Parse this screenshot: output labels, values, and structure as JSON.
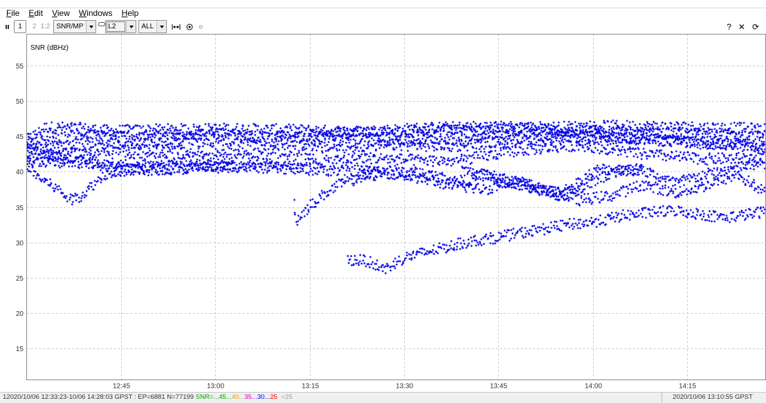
{
  "menu": {
    "items": [
      {
        "u": "F",
        "rest": "ile"
      },
      {
        "u": "E",
        "rest": "dit"
      },
      {
        "u": "V",
        "rest": "iew"
      },
      {
        "u": "W",
        "rest": "indows"
      },
      {
        "u": "H",
        "rest": "elp"
      }
    ]
  },
  "toolbar": {
    "frame1": "1",
    "frame2": "2",
    "frame12": "1:2",
    "plot_type": "SNR/MP",
    "freq": "L2",
    "sat": "ALL",
    "help": "?",
    "close": "✕",
    "reload": "⟳"
  },
  "chart_data": {
    "type": "scatter",
    "ylabel": "SNR (dBHz)",
    "xlabel": "",
    "x_ticks": [
      "12:45",
      "13:00",
      "13:15",
      "13:30",
      "13:45",
      "14:00",
      "14:15"
    ],
    "x_tick_minutes": [
      12,
      27,
      42,
      57,
      72,
      87,
      102
    ],
    "xlim_minutes": [
      -3.0,
      114.5
    ],
    "x_origin_label": "12:33",
    "y_ticks": [
      15,
      20,
      25,
      30,
      35,
      40,
      45,
      50,
      55
    ],
    "ylim": [
      10.5,
      59.5
    ],
    "grid": true,
    "marker_color": "#0000e6",
    "series": [
      {
        "x": [
          -3,
          0,
          5,
          10,
          20,
          30,
          40,
          50,
          60,
          70,
          80,
          90,
          100,
          110,
          114.5
        ],
        "y": [
          44.5,
          46.3,
          46.2,
          45.8,
          46.0,
          46.1,
          45.9,
          45.7,
          46.2,
          46.4,
          46.3,
          46.5,
          46.4,
          46.2,
          46.0
        ]
      },
      {
        "x": [
          -3,
          5,
          15,
          25,
          35,
          45,
          55,
          65,
          75,
          85,
          95,
          105,
          114.5
        ],
        "y": [
          44.0,
          45.2,
          45.0,
          45.4,
          44.8,
          45.3,
          45.6,
          45.9,
          46.1,
          45.8,
          45.5,
          45.2,
          45.0
        ]
      },
      {
        "x": [
          -3,
          5,
          15,
          25,
          35,
          45,
          55,
          65,
          75,
          85,
          95,
          105,
          114.5
        ],
        "y": [
          43.0,
          43.8,
          44.0,
          44.6,
          44.2,
          44.9,
          44.5,
          44.7,
          45.2,
          45.0,
          44.8,
          44.0,
          43.5
        ]
      },
      {
        "x": [
          -3,
          5,
          15,
          25,
          35,
          45,
          55,
          65,
          75,
          85,
          95,
          105,
          114.5
        ],
        "y": [
          42.2,
          42.6,
          43.2,
          43.0,
          42.5,
          43.4,
          43.8,
          43.6,
          44.5,
          45.0,
          44.6,
          44.0,
          43.8
        ]
      },
      {
        "x": [
          -3,
          10,
          20,
          30,
          40,
          50,
          60,
          65,
          75,
          85,
          95,
          105,
          114.5
        ],
        "y": [
          41.5,
          41.2,
          41.8,
          41.2,
          41.0,
          42.0,
          41.6,
          41.5,
          43.0,
          43.8,
          42.5,
          41.8,
          42.0
        ]
      },
      {
        "x": [
          -3,
          5,
          15,
          25,
          35,
          45,
          55,
          60,
          66,
          70,
          76,
          82,
          88,
          95,
          100,
          105,
          110,
          114.5
        ],
        "y": [
          43.6,
          41.5,
          40.2,
          40.8,
          40.6,
          40.2,
          40.1,
          39.8,
          38.5,
          39.6,
          37.9,
          37.0,
          40.4,
          40.2,
          38.4,
          39.6,
          40.6,
          41.2
        ]
      },
      {
        "x": [
          -3,
          -1,
          2,
          4,
          6,
          8,
          10,
          15,
          25,
          30
        ],
        "y": [
          41.0,
          39.2,
          37.5,
          36.0,
          36.8,
          38.5,
          40.0,
          40.3,
          40.5,
          40.6
        ]
      },
      {
        "x": [
          50,
          55,
          60,
          65,
          70,
          75,
          80,
          85,
          90,
          95,
          100,
          105,
          110,
          114.5
        ],
        "y": [
          40.0,
          39.8,
          39.0,
          38.0,
          37.5,
          38.8,
          37.2,
          36.0,
          36.6,
          38.2,
          37.0,
          38.0,
          39.6,
          37.0
        ]
      },
      {
        "x": [
          66,
          72,
          76,
          82,
          86,
          90,
          95
        ],
        "y": [
          40.2,
          39.2,
          38.1,
          36.6,
          38.1,
          39.9,
          40.5
        ]
      },
      {
        "x": [
          39.5,
          40.0,
          41.0,
          42.5,
          44.5,
          47.0,
          50.0,
          53.0
        ],
        "y": [
          35.5,
          33.0,
          34.3,
          35.5,
          37.0,
          38.3,
          39.1,
          39.6
        ]
      },
      {
        "x": [
          48,
          51,
          54,
          57,
          60,
          64,
          68,
          72,
          76,
          80,
          84,
          88,
          92,
          96,
          100,
          104,
          108,
          112,
          114.5
        ],
        "y": [
          27.5,
          27.4,
          26.2,
          27.8,
          28.5,
          29.4,
          30.2,
          30.7,
          31.4,
          32.0,
          32.6,
          33.0,
          33.8,
          34.2,
          34.5,
          34.0,
          33.5,
          34.0,
          34.4
        ]
      }
    ]
  },
  "status": {
    "frame_num": "1",
    "summary": "2020/10/06 12:33:23-10/06 14:28:03 GPST : EP=6881 N=77199",
    "snr_prefix": "SNR=...",
    "snr_levels": [
      {
        "label": "45",
        "color": "#00a000"
      },
      {
        "label": "40",
        "color": "#e0a000"
      },
      {
        "label": "35",
        "color": "#c000c0"
      },
      {
        "label": "30",
        "color": "#0000ff"
      },
      {
        "label": "25",
        "color": "#ff0000"
      }
    ],
    "snr_low": "<25",
    "snr_low_color": "#a0a0a0",
    "cursor_time": "2020/10/06 13:10:55 GPST"
  }
}
